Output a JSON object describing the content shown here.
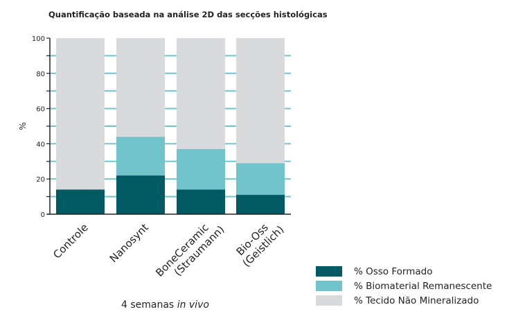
{
  "chart_data": {
    "type": "bar",
    "stacked": true,
    "title": "Quantificação baseada na análise 2D das secções histológicas",
    "xlabel": "4 semanas",
    "xlabel_italic": "in vivo",
    "ylabel": "%",
    "ylim": [
      0,
      100
    ],
    "yticks": [
      0,
      20,
      40,
      60,
      80,
      100
    ],
    "categories": [
      [
        "Controle"
      ],
      [
        "Nanosynt"
      ],
      [
        "BoneCeramic",
        "(Straumann)"
      ],
      [
        "Bio-Oss",
        "(Geistlich)"
      ]
    ],
    "series": [
      {
        "name": "% Osso Formado",
        "color": "#005a64",
        "values": [
          14,
          22,
          14,
          11
        ]
      },
      {
        "name": "% Biomaterial Remanescente",
        "color": "#70c4ca",
        "values": [
          0,
          22,
          23,
          18
        ]
      },
      {
        "name": "% Tecido Não Mineralizado",
        "color": "#d9dadc",
        "values": [
          86,
          56,
          63,
          71
        ]
      }
    ],
    "gridline_color": "#70c4ca",
    "legend_position": "bottom-right"
  }
}
